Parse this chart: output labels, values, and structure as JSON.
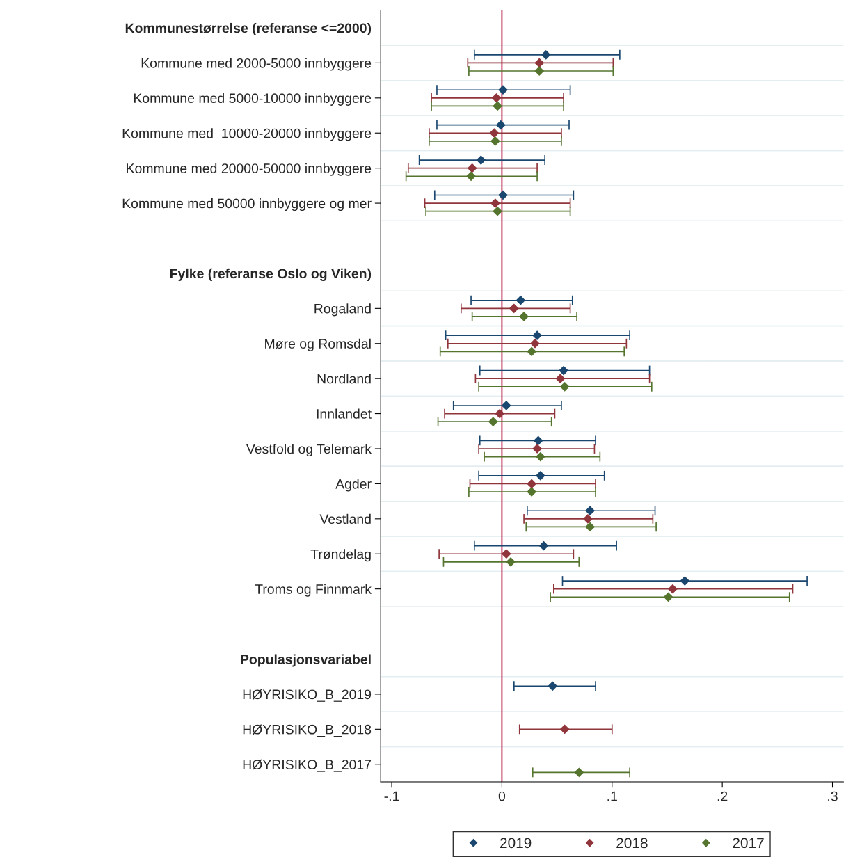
{
  "chart_data": {
    "type": "scatter",
    "orientation": "horizontal",
    "marker": "diamond",
    "grid": "y",
    "legend": "bottom",
    "categories": [
      "Kommunestørrelse (referanse <=2000)",
      "Kommune med 2000-5000 innbyggere",
      "Kommune med 5000-10000 innbyggere",
      "Kommune med  10000-20000 innbyggere",
      "Kommune med 20000-50000 innbyggere",
      "Kommune med 50000 innbyggere og mer",
      null,
      "Fylke (referanse Oslo og Viken)",
      "Rogaland",
      "Møre og Romsdal",
      "Nordland",
      "Innlandet",
      "Vestfold og Telemark",
      "Agder",
      "Vestland",
      "Trøndelag",
      "Troms og Finnmark",
      null,
      "Populasjonsvariabel",
      "HØYRISIKO_B_2019",
      "HØYRISIKO_B_2018",
      "HØYRISIKO_B_2017"
    ],
    "xlim": [
      -0.11,
      0.31
    ],
    "xticks": [
      {
        "value": -0.1,
        "label": "-.1"
      },
      0,
      {
        "value": 0.1,
        "label": ".1"
      },
      {
        "value": 0.2,
        "label": ".2"
      },
      {
        "value": 0.3,
        "label": ".3"
      }
    ],
    "ref_lines": [
      {
        "axis": "x",
        "value": 0,
        "color": "#b5123d"
      }
    ],
    "series": [
      {
        "name": "2019",
        "color": "#1a476f",
        "values": [
          null,
          0.04,
          0.001,
          -0.001,
          -0.019,
          0.001,
          null,
          null,
          0.017,
          0.032,
          0.056,
          0.004,
          0.033,
          0.035,
          0.08,
          0.038,
          0.166,
          null,
          null,
          0.046,
          null,
          null
        ],
        "errors": [
          null,
          [
            -0.025,
            0.107
          ],
          [
            -0.059,
            0.062
          ],
          [
            -0.059,
            0.061
          ],
          [
            -0.075,
            0.039
          ],
          [
            -0.061,
            0.065
          ],
          null,
          null,
          [
            -0.028,
            0.064
          ],
          [
            -0.051,
            0.116
          ],
          [
            -0.02,
            0.134
          ],
          [
            -0.044,
            0.054
          ],
          [
            -0.02,
            0.085
          ],
          [
            -0.021,
            0.093
          ],
          [
            0.023,
            0.139
          ],
          [
            -0.025,
            0.104
          ],
          [
            0.055,
            0.277
          ],
          null,
          null,
          [
            0.011,
            0.085
          ],
          null,
          null
        ]
      },
      {
        "name": "2018",
        "color": "#90353b",
        "values": [
          null,
          0.034,
          -0.005,
          -0.007,
          -0.027,
          -0.006,
          null,
          null,
          0.011,
          0.03,
          0.053,
          -0.002,
          0.032,
          0.027,
          0.078,
          0.004,
          0.155,
          null,
          null,
          null,
          0.057,
          null
        ],
        "errors": [
          null,
          [
            -0.031,
            0.101
          ],
          [
            -0.064,
            0.056
          ],
          [
            -0.066,
            0.054
          ],
          [
            -0.085,
            0.032
          ],
          [
            -0.07,
            0.062
          ],
          null,
          null,
          [
            -0.037,
            0.062
          ],
          [
            -0.049,
            0.113
          ],
          [
            -0.024,
            0.134
          ],
          [
            -0.052,
            0.048
          ],
          [
            -0.021,
            0.084
          ],
          [
            -0.029,
            0.085
          ],
          [
            0.02,
            0.137
          ],
          [
            -0.057,
            0.065
          ],
          [
            0.047,
            0.264
          ],
          null,
          null,
          null,
          [
            0.016,
            0.1
          ],
          null
        ]
      },
      {
        "name": "2017",
        "color": "#55752f",
        "values": [
          null,
          0.034,
          -0.004,
          -0.006,
          -0.028,
          -0.004,
          null,
          null,
          0.02,
          0.027,
          0.057,
          -0.008,
          0.035,
          0.027,
          0.08,
          0.008,
          0.151,
          null,
          null,
          null,
          null,
          0.07
        ],
        "errors": [
          null,
          [
            -0.03,
            0.101
          ],
          [
            -0.064,
            0.056
          ],
          [
            -0.066,
            0.054
          ],
          [
            -0.087,
            0.032
          ],
          [
            -0.069,
            0.062
          ],
          null,
          null,
          [
            -0.027,
            0.068
          ],
          [
            -0.056,
            0.111
          ],
          [
            -0.021,
            0.136
          ],
          [
            -0.058,
            0.045
          ],
          [
            -0.016,
            0.089
          ],
          [
            -0.03,
            0.085
          ],
          [
            0.022,
            0.14
          ],
          [
            -0.053,
            0.07
          ],
          [
            0.044,
            0.261
          ],
          null,
          null,
          null,
          null,
          [
            0.028,
            0.116
          ]
        ]
      }
    ]
  }
}
